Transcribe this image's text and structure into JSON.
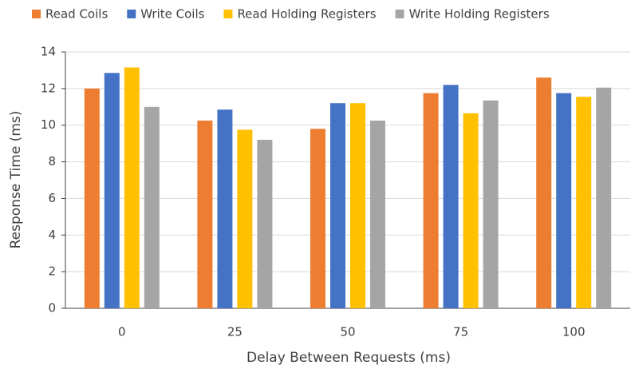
{
  "chart_data": {
    "type": "bar",
    "xlabel": "Delay Between Requests (ms)",
    "ylabel": "Response Time (ms)",
    "categories": [
      "0",
      "25",
      "50",
      "75",
      "100"
    ],
    "series": [
      {
        "name": "Read Coils",
        "color": "#ed7d31",
        "values": [
          12.0,
          10.25,
          9.8,
          11.75,
          12.6
        ]
      },
      {
        "name": "Write Coils",
        "color": "#4472c4",
        "values": [
          12.85,
          10.85,
          11.2,
          12.2,
          11.75
        ]
      },
      {
        "name": "Read Holding Registers",
        "color": "#ffc000",
        "values": [
          13.15,
          9.75,
          11.2,
          10.65,
          11.55
        ]
      },
      {
        "name": "Write Holding Registers",
        "color": "#a5a5a5",
        "values": [
          11.0,
          9.2,
          10.25,
          11.35,
          12.05
        ]
      }
    ],
    "ylim": [
      0,
      14
    ],
    "yticks": [
      0,
      2,
      4,
      6,
      8,
      10,
      12,
      14
    ],
    "grid": true,
    "legend": "top"
  }
}
